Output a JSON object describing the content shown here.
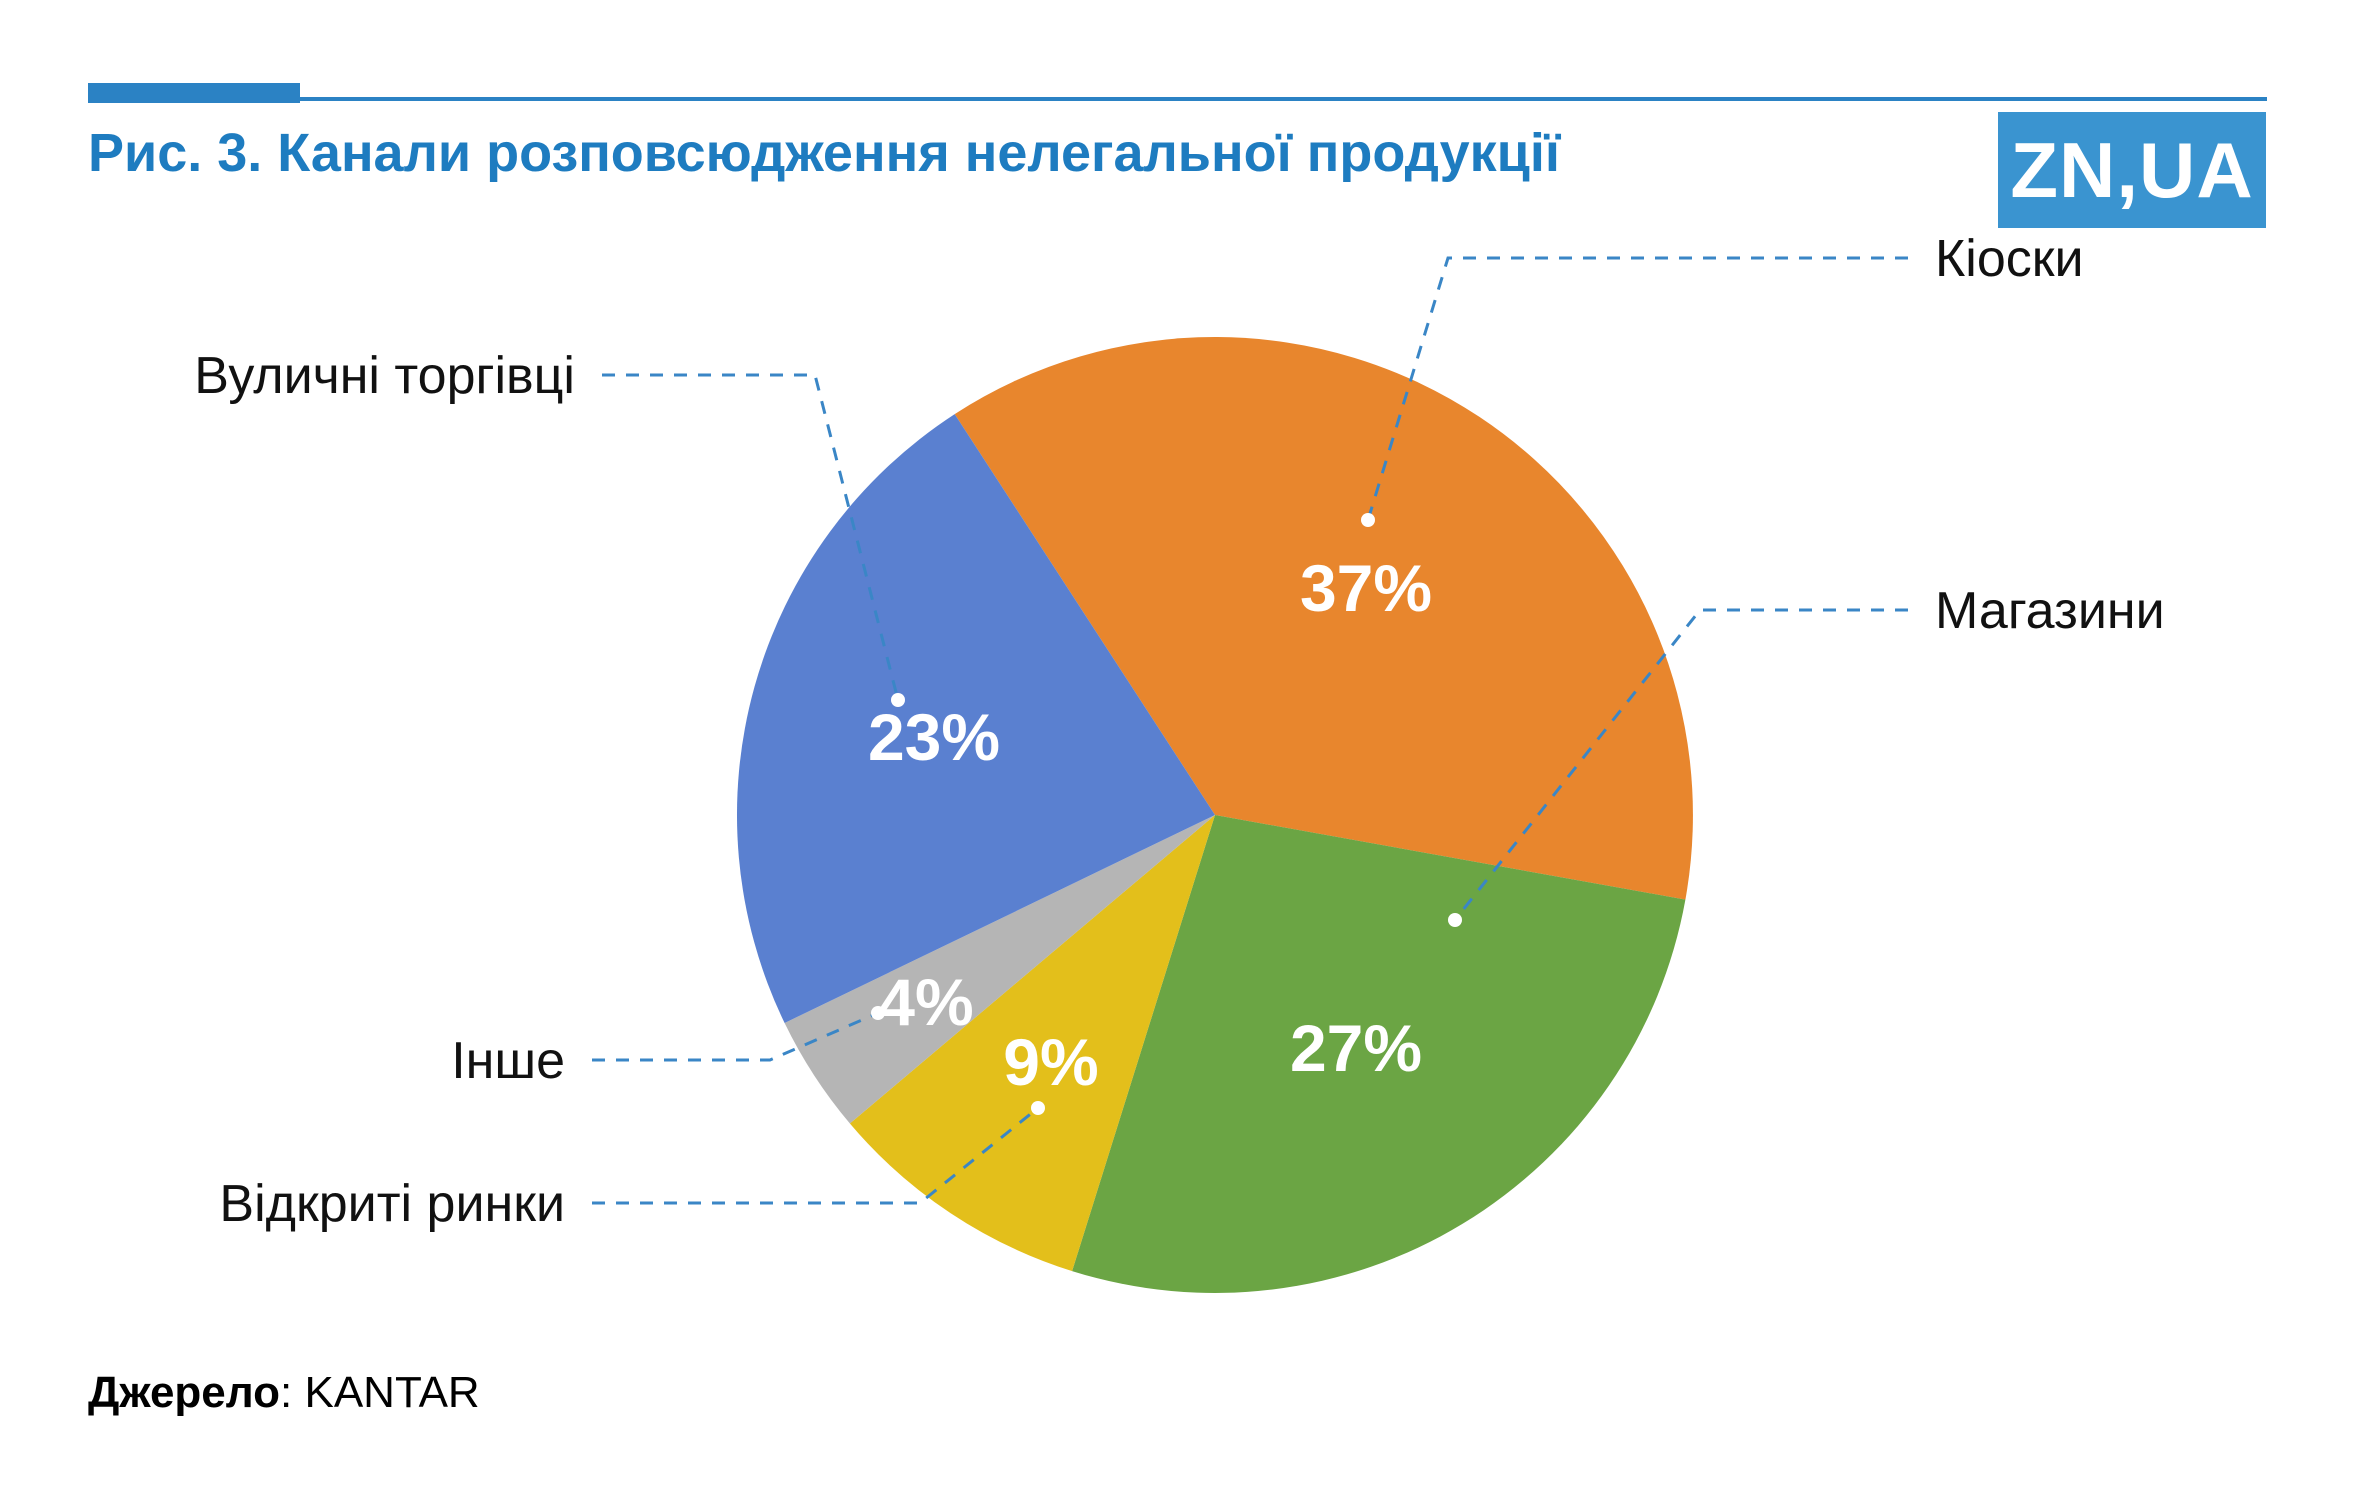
{
  "header": {
    "title": "Рис. 3. Канали розповсюдження нелегальної продукції",
    "logo_text": "ZN,UA"
  },
  "colors": {
    "accent": "#2b82c4",
    "title": "#1e7cc0",
    "logo_bg": "#3a94d0",
    "label": "#111111",
    "pct": "#ffffff",
    "leader": "#3a86c6"
  },
  "source": {
    "bold": "Джерело",
    "rest": ": KANTAR"
  },
  "chart_data": {
    "type": "pie",
    "title": "Канали розповсюдження нелегальної продукції",
    "start_angle_deg": -33,
    "direction": "clockwise",
    "legend": "none",
    "categories": [
      "Кіоски",
      "Магазини",
      "Відкриті ринки",
      "Інше",
      "Вуличні торгівці"
    ],
    "values": [
      37,
      27,
      9,
      4,
      23
    ],
    "segments": [
      {
        "id": "kiosks",
        "label": "Кіоски",
        "value": 37,
        "pct_label": "37%",
        "color": "#e8862d"
      },
      {
        "id": "stores",
        "label": "Магазини",
        "value": 27,
        "pct_label": "27%",
        "color": "#6ba544"
      },
      {
        "id": "open-markets",
        "label": "Відкриті ринки",
        "value": 9,
        "pct_label": "9%",
        "color": "#e3bf1b"
      },
      {
        "id": "other",
        "label": "Інше",
        "value": 4,
        "pct_label": "4%",
        "color": "#b5b5b5"
      },
      {
        "id": "street-vendors",
        "label": "Вуличні торгівці",
        "value": 23,
        "pct_label": "23%",
        "color": "#5a80d0"
      }
    ]
  }
}
